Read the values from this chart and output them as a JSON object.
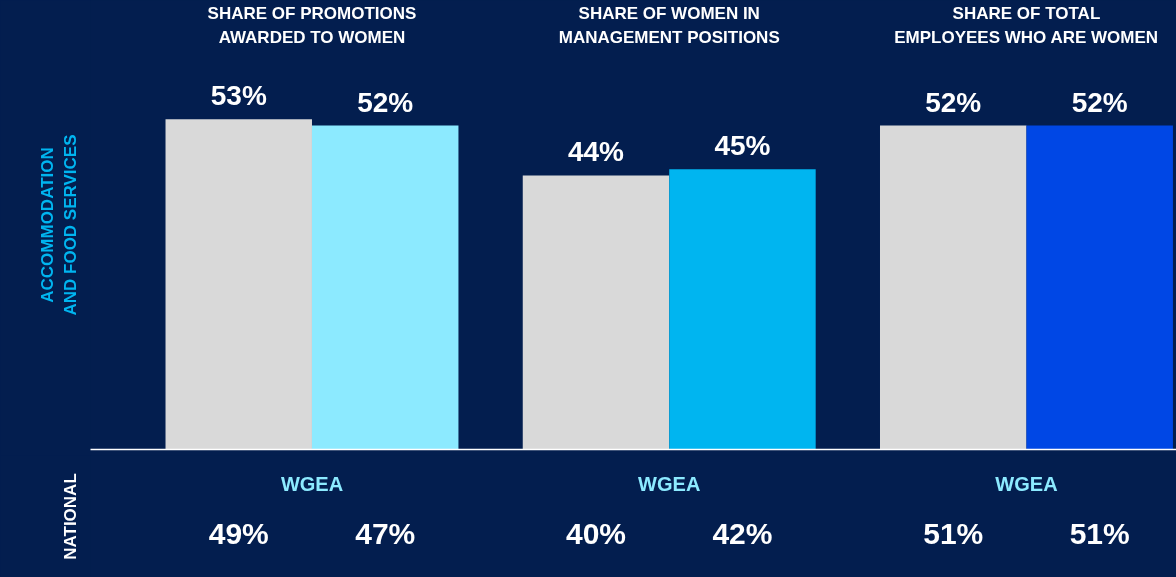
{
  "chart_data": [
    {
      "type": "bar",
      "ylabel": "ACCOMMODATION AND FOOD SERVICES",
      "categories": [
        "SHARE OF PROMOTIONS AWARDED TO WOMEN",
        "SHARE OF WOMEN IN MANAGEMENT POSITIONS",
        "SHARE OF TOTAL EMPLOYEES WHO ARE WOMEN"
      ],
      "tick_labels": "x",
      "series": [
        {
          "colors": [
            "#d9d9d9",
            "#d9d9d9",
            "#d9d9d9"
          ],
          "values": [
            53,
            44,
            52
          ],
          "value_labels": [
            "53%",
            "44%",
            "52%"
          ]
        },
        {
          "colors": [
            "#8ceaff",
            "#00b5f0",
            "#0047e5"
          ],
          "values": [
            52,
            45,
            52
          ],
          "value_labels": [
            "52%",
            "45%",
            "52%"
          ]
        }
      ]
    },
    {
      "type": "other",
      "ylabel": "NATIONAL",
      "categories": [
        null,
        null,
        null,
        null,
        null,
        null
      ],
      "value_labels": [
        "49%",
        "47%",
        "40%",
        "42%",
        "51%",
        "51%"
      ],
      "annotations": [
        "WGEA",
        "WGEA",
        "WGEA"
      ]
    }
  ]
}
